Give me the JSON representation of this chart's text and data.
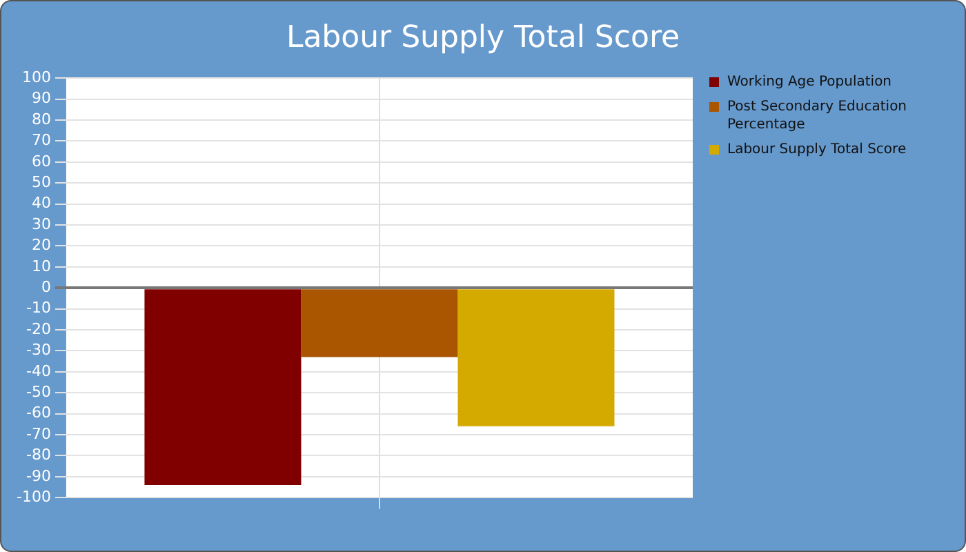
{
  "chart_data": {
    "type": "bar",
    "title": "Labour Supply Total Score",
    "categories": [
      null
    ],
    "series": [
      {
        "name": "Working Age Population",
        "color": "#800000",
        "values": [
          -94
        ]
      },
      {
        "name": "Post Secondary Education Percentage",
        "color": "#aa5500",
        "values": [
          -33
        ]
      },
      {
        "name": "Labour Supply Total Score",
        "color": "#d4aa00",
        "values": [
          -66
        ]
      }
    ],
    "ylim": [
      -100,
      100
    ],
    "yticks": [
      -100,
      -90,
      -80,
      -70,
      -60,
      -50,
      -40,
      -30,
      -20,
      -10,
      0,
      10,
      20,
      30,
      40,
      50,
      60,
      70,
      80,
      90,
      100
    ],
    "grid": true,
    "legend": "right"
  }
}
